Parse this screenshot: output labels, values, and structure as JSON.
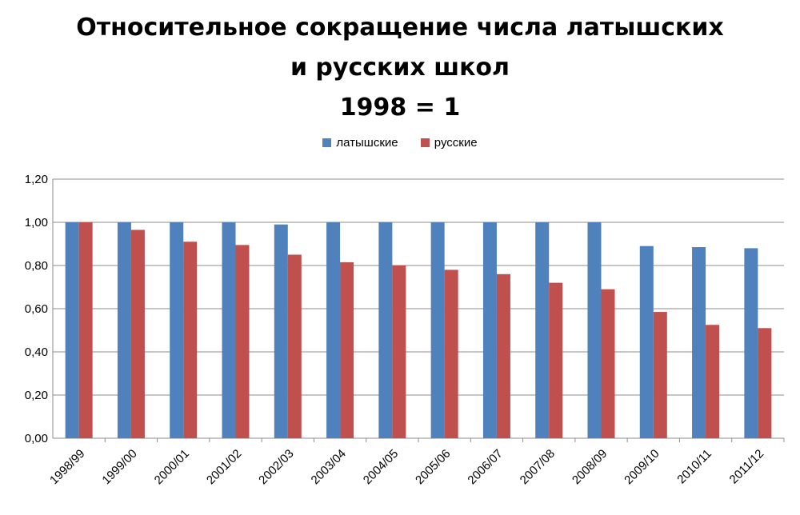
{
  "title_lines": [
    "Относительное сокращение числа латышских",
    "и русских школ",
    "1998 = 1"
  ],
  "colors": {
    "latvian": "#4f81bd",
    "russian": "#c0504d",
    "grid": "#8c8c8c"
  },
  "chart_data": {
    "type": "bar",
    "title": "Относительное сокращение числа латышских и русских школ 1998 = 1",
    "categories": [
      "1998/99",
      "1999/00",
      "2000/01",
      "2001/02",
      "2002/03",
      "2003/04",
      "2004/05",
      "2005/06",
      "2006/07",
      "2007/08",
      "2008/09",
      "2009/10",
      "2010/11",
      "2011/12"
    ],
    "series": [
      {
        "name": "латышские",
        "values": [
          1.0,
          1.0,
          1.0,
          1.0,
          0.99,
          1.0,
          1.0,
          1.0,
          1.0,
          1.0,
          1.0,
          0.89,
          0.885,
          0.88
        ]
      },
      {
        "name": "русские",
        "values": [
          1.0,
          0.965,
          0.91,
          0.895,
          0.85,
          0.815,
          0.8,
          0.78,
          0.76,
          0.72,
          0.69,
          0.585,
          0.525,
          0.51
        ]
      }
    ],
    "ylim": [
      0,
      1.2
    ],
    "yticks": [
      "0,00",
      "0,20",
      "0,40",
      "0,60",
      "0,80",
      "1,00",
      "1,20"
    ],
    "ytick_values": [
      0,
      0.2,
      0.4,
      0.6,
      0.8,
      1.0,
      1.2
    ],
    "grid": true,
    "legend_position": "top"
  }
}
